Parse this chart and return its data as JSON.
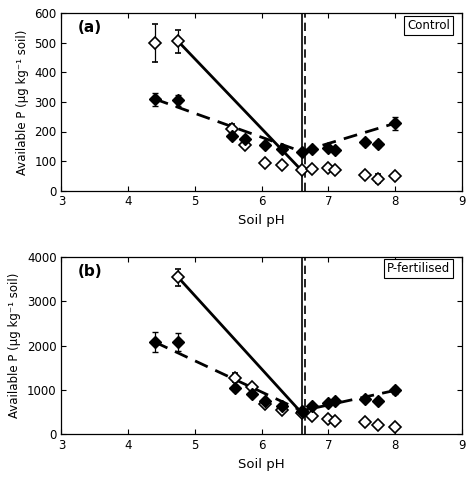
{
  "panel_a": {
    "title": "Control",
    "label": "(a)",
    "ylim": [
      0,
      600
    ],
    "yticks": [
      0,
      100,
      200,
      300,
      400,
      500,
      600
    ],
    "ylabel": "Available P (μg kg⁻¹ soil)",
    "xlabel": "Soil pH",
    "xlim": [
      3,
      9
    ],
    "xticks": [
      3,
      4,
      5,
      6,
      7,
      8,
      9
    ],
    "vline_solid": 6.6,
    "vline_dashed": 6.65,
    "water_x": [
      4.4,
      4.75,
      5.55,
      5.75,
      6.05,
      6.3,
      6.6,
      6.75,
      7.0,
      7.1,
      7.55,
      7.75,
      8.0
    ],
    "water_y": [
      500,
      505,
      210,
      155,
      95,
      85,
      68,
      73,
      78,
      68,
      52,
      40,
      50
    ],
    "water_yerr": [
      65,
      38,
      15,
      10,
      10,
      8,
      7,
      8,
      8,
      5,
      8,
      15,
      8
    ],
    "cacl2_x": [
      4.4,
      4.75,
      5.55,
      5.75,
      6.05,
      6.3,
      6.6,
      6.75,
      7.0,
      7.1,
      7.55,
      7.75,
      8.0
    ],
    "cacl2_y": [
      310,
      305,
      185,
      175,
      155,
      140,
      132,
      140,
      143,
      138,
      163,
      158,
      228
    ],
    "cacl2_yerr": [
      22,
      18,
      10,
      10,
      8,
      8,
      7,
      5,
      5,
      5,
      8,
      10,
      22
    ],
    "water_line_x": [
      4.75,
      6.6
    ],
    "water_line_y": [
      505,
      68
    ],
    "cacl2_line_x": [
      4.4,
      6.6,
      8.0
    ],
    "cacl2_line_y": [
      310,
      132,
      228
    ]
  },
  "panel_b": {
    "title": "P-fertilised",
    "label": "(b)",
    "ylim": [
      0,
      4000
    ],
    "yticks": [
      0,
      1000,
      2000,
      3000,
      4000
    ],
    "ylabel": "Available P (μg kg⁻¹ soil)",
    "xlabel": "Soil pH",
    "xlim": [
      3,
      9
    ],
    "xticks": [
      3,
      4,
      5,
      6,
      7,
      8,
      9
    ],
    "vline_solid": 6.6,
    "vline_dashed": 6.65,
    "water_x": [
      4.75,
      5.6,
      5.85,
      6.05,
      6.3,
      6.6,
      6.75,
      7.0,
      7.1,
      7.55,
      7.75,
      8.0
    ],
    "water_y": [
      3540,
      1280,
      1060,
      680,
      540,
      480,
      420,
      340,
      310,
      270,
      210,
      160
    ],
    "water_yerr": [
      190,
      110,
      75,
      50,
      38,
      38,
      28,
      22,
      22,
      18,
      18,
      18
    ],
    "cacl2_x": [
      4.4,
      4.75,
      5.6,
      5.85,
      6.05,
      6.3,
      6.6,
      6.75,
      7.0,
      7.1,
      7.55,
      7.75,
      8.0
    ],
    "cacl2_y": [
      2080,
      2080,
      1040,
      910,
      750,
      640,
      530,
      640,
      710,
      750,
      790,
      740,
      990
    ],
    "cacl2_yerr": [
      230,
      195,
      75,
      55,
      38,
      28,
      28,
      22,
      22,
      22,
      28,
      38,
      75
    ],
    "water_line_x": [
      4.75,
      6.6
    ],
    "water_line_y": [
      3540,
      480
    ],
    "cacl2_line_x": [
      4.4,
      6.6,
      8.0
    ],
    "cacl2_line_y": [
      2080,
      530,
      990
    ]
  }
}
